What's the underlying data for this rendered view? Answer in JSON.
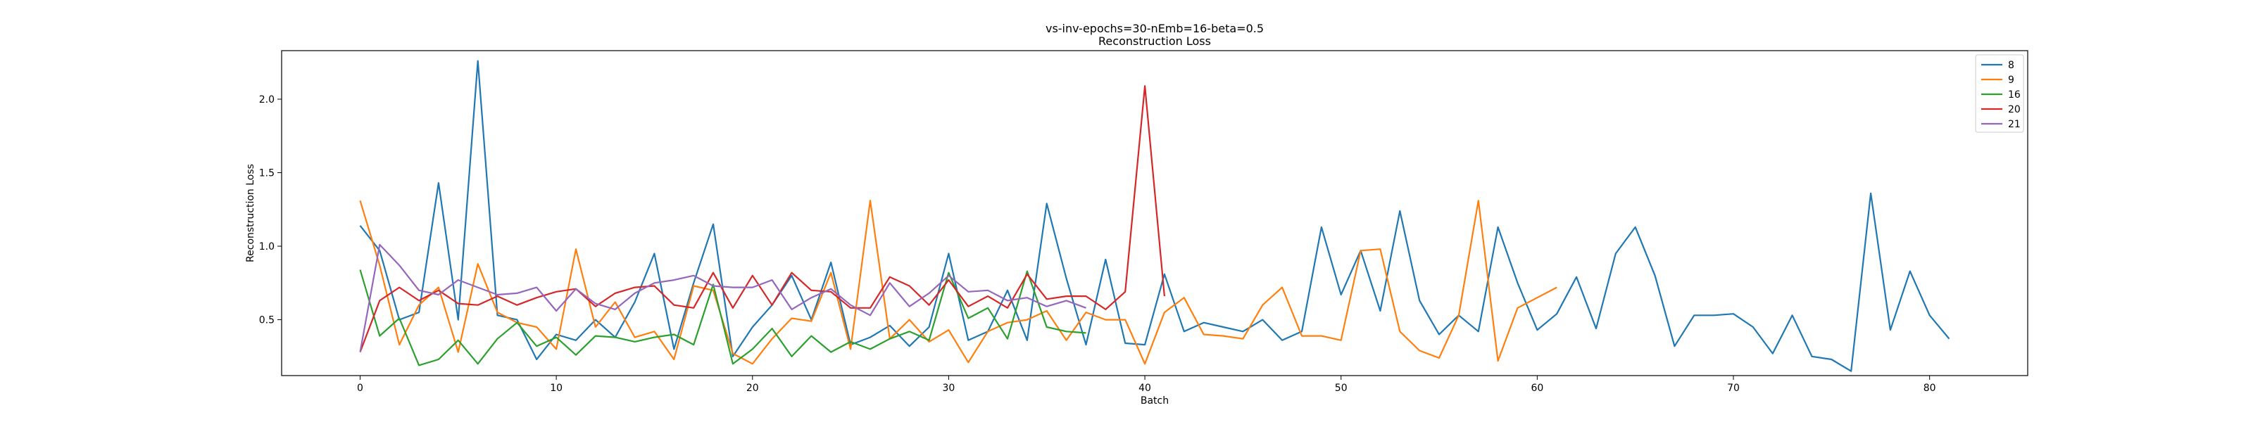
{
  "chart_data": {
    "type": "line",
    "title": "vs-inv-epochs=30-nEmb=16-beta=0.5",
    "subtitle": "Reconstruction Loss",
    "xlabel": "Batch",
    "ylabel": "Reconstruction Loss",
    "xlim": [
      -4,
      85
    ],
    "ylim": [
      0.12,
      2.33
    ],
    "xticks": [
      0,
      10,
      20,
      30,
      40,
      50,
      60,
      70,
      80
    ],
    "yticks": [
      0.5,
      1.0,
      1.5,
      2.0
    ],
    "ytick_labels": [
      "0.5",
      "1.0",
      "1.5",
      "2.0"
    ],
    "grid": false,
    "legend_position": "top-right",
    "series": [
      {
        "name": "8",
        "color": "#1f77b4",
        "values": [
          1.14,
          0.97,
          0.5,
          0.55,
          1.43,
          0.5,
          2.26,
          0.53,
          0.5,
          0.23,
          0.4,
          0.36,
          0.5,
          0.38,
          0.62,
          0.95,
          0.3,
          0.75,
          1.15,
          0.25,
          0.45,
          0.6,
          0.8,
          0.5,
          0.89,
          0.33,
          0.38,
          0.46,
          0.32,
          0.45,
          0.95,
          0.36,
          0.42,
          0.7,
          0.36,
          1.29,
          0.78,
          0.33,
          0.91,
          0.34,
          0.33,
          0.81,
          0.42,
          0.48,
          0.45,
          0.42,
          0.5,
          0.36,
          0.42,
          1.13,
          0.67,
          0.97,
          0.56,
          1.24,
          0.63,
          0.4,
          0.53,
          0.42,
          1.13,
          0.75,
          0.43,
          0.54,
          0.79,
          0.44,
          0.95,
          1.13,
          0.8,
          0.32,
          0.53,
          0.53,
          0.54,
          0.45,
          0.27,
          0.53,
          0.25,
          0.23,
          0.15,
          1.36,
          0.43,
          0.83,
          0.53,
          0.37
        ]
      },
      {
        "name": "9",
        "color": "#ff7f0e",
        "values": [
          1.31,
          0.87,
          0.33,
          0.6,
          0.72,
          0.28,
          0.88,
          0.55,
          0.48,
          0.45,
          0.3,
          0.98,
          0.45,
          0.62,
          0.38,
          0.42,
          0.23,
          0.73,
          0.7,
          0.27,
          0.2,
          0.37,
          0.51,
          0.49,
          0.82,
          0.3,
          1.31,
          0.37,
          0.5,
          0.35,
          0.43,
          0.21,
          0.42,
          0.48,
          0.5,
          0.56,
          0.36,
          0.55,
          0.5,
          0.5,
          0.2,
          0.55,
          0.65,
          0.4,
          0.39,
          0.37,
          0.6,
          0.72,
          0.39,
          0.39,
          0.36,
          0.97,
          0.98,
          0.42,
          0.29,
          0.24,
          0.53,
          1.31,
          0.22,
          0.58,
          0.65,
          0.72
        ]
      },
      {
        "name": "16",
        "color": "#2ca02c",
        "values": [
          0.84,
          0.39,
          0.51,
          0.19,
          0.23,
          0.36,
          0.2,
          0.37,
          0.48,
          0.32,
          0.38,
          0.26,
          0.39,
          0.38,
          0.35,
          0.38,
          0.4,
          0.33,
          0.74,
          0.2,
          0.3,
          0.44,
          0.25,
          0.39,
          0.28,
          0.35,
          0.3,
          0.37,
          0.42,
          0.36,
          0.82,
          0.51,
          0.58,
          0.37,
          0.83,
          0.45,
          0.42,
          0.41
        ]
      },
      {
        "name": "20",
        "color": "#d62728",
        "values": [
          0.28,
          0.63,
          0.72,
          0.63,
          0.7,
          0.61,
          0.6,
          0.66,
          0.6,
          0.65,
          0.69,
          0.71,
          0.59,
          0.68,
          0.72,
          0.73,
          0.6,
          0.58,
          0.82,
          0.58,
          0.8,
          0.6,
          0.82,
          0.7,
          0.69,
          0.58,
          0.58,
          0.79,
          0.73,
          0.6,
          0.77,
          0.59,
          0.66,
          0.58,
          0.81,
          0.64,
          0.66,
          0.66,
          0.57,
          0.69,
          2.09,
          0.66
        ]
      },
      {
        "name": "21",
        "color": "#9467bd",
        "values": [
          0.28,
          1.01,
          0.87,
          0.7,
          0.67,
          0.77,
          0.72,
          0.67,
          0.68,
          0.72,
          0.56,
          0.71,
          0.61,
          0.57,
          0.68,
          0.75,
          0.77,
          0.8,
          0.73,
          0.72,
          0.72,
          0.77,
          0.57,
          0.65,
          0.71,
          0.6,
          0.53,
          0.75,
          0.59,
          0.68,
          0.8,
          0.69,
          0.7,
          0.63,
          0.65,
          0.59,
          0.63,
          0.58
        ]
      }
    ]
  }
}
